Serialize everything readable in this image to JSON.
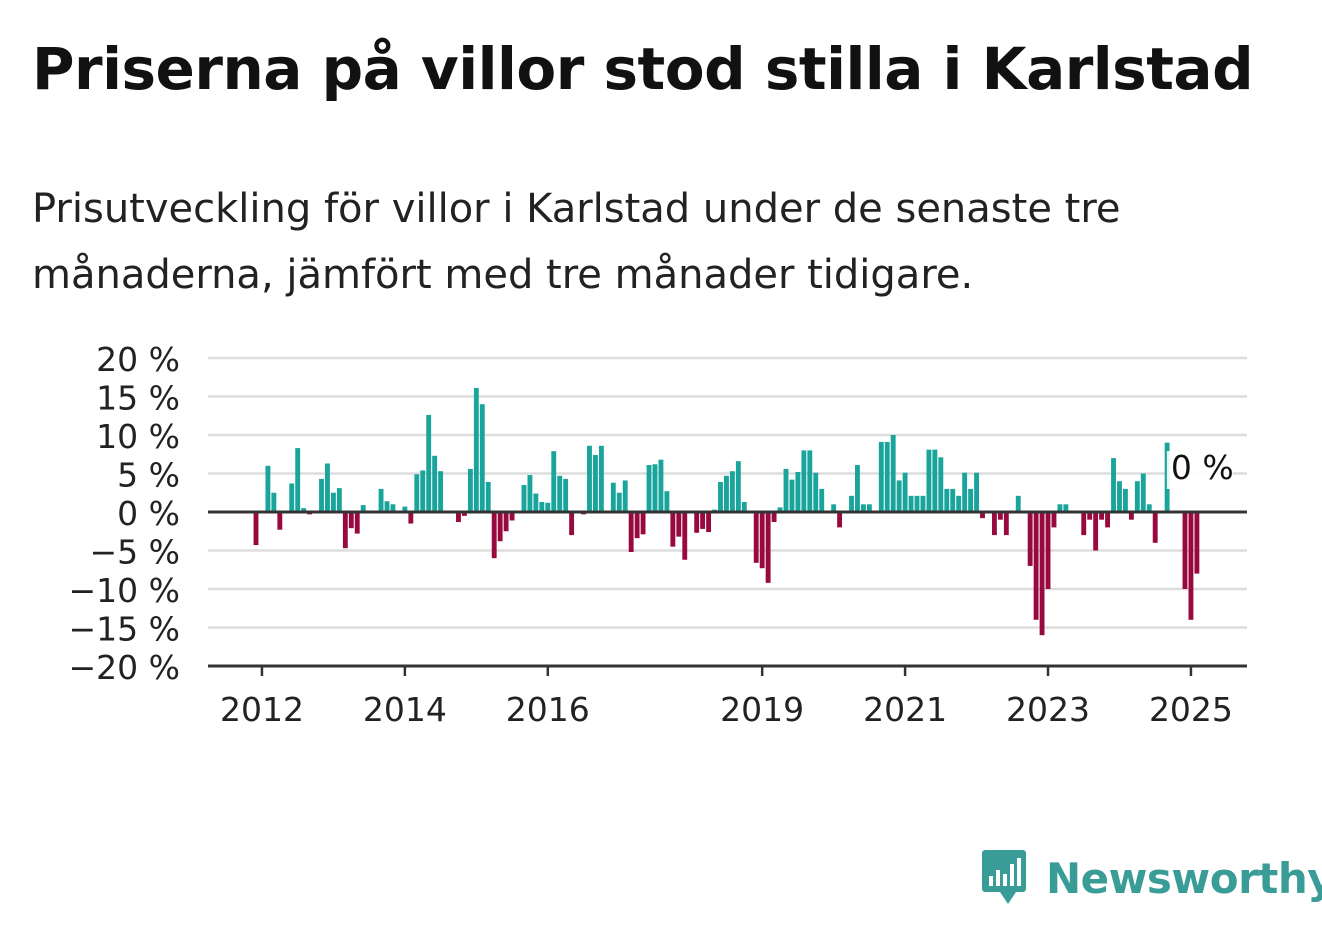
{
  "title": "Priserna på villor stod stilla i Karlstad",
  "subtitle": "Prisutveckling för villor i Karlstad under de senaste tre månaderna, jämfört med tre månader tidigare.",
  "brand": {
    "name": "Newsworthy",
    "color": "#3a9c97",
    "icon": "newsworthy-logo-icon"
  },
  "colors": {
    "positive": "#1aa59c",
    "negative": "#980a3f",
    "grid": "#dddddd",
    "axis": "#333333"
  },
  "chart_data": {
    "type": "bar",
    "x_unit": "month",
    "x_start": "2011-12",
    "ylim": [
      -20,
      20
    ],
    "yticks": [
      20,
      15,
      10,
      5,
      0,
      -5,
      -10,
      -15,
      -20
    ],
    "ytick_labels": [
      "20 %",
      "15 %",
      "10 %",
      "5 %",
      "0 %",
      "−5 %",
      "−10 %",
      "−15 %",
      "−20 %"
    ],
    "xtick_labels": [
      {
        "x": "2012-01",
        "label": "2012"
      },
      {
        "x": "2014-01",
        "label": "2014"
      },
      {
        "x": "2016-01",
        "label": "2016"
      },
      {
        "x": "2019-01",
        "label": "2019"
      },
      {
        "x": "2021-01",
        "label": "2021"
      },
      {
        "x": "2023-01",
        "label": "2023"
      },
      {
        "x": "2025-01",
        "label": "2025"
      }
    ],
    "last_value_label": "0 %",
    "grid": true,
    "values": [
      -4.3,
      0,
      6.0,
      2.5,
      -2.3,
      0,
      3.7,
      8.3,
      0.5,
      -0.3,
      0,
      4.3,
      6.3,
      2.5,
      3.1,
      -4.7,
      -2.1,
      -2.8,
      0.9,
      0,
      0,
      3.0,
      1.4,
      1.0,
      0,
      0.7,
      -1.5,
      4.9,
      5.4,
      12.6,
      7.3,
      5.3,
      0,
      0,
      -1.3,
      -0.5,
      5.6,
      16.1,
      14.0,
      3.9,
      -6.0,
      -3.8,
      -2.5,
      -1.1,
      0,
      3.5,
      4.8,
      2.4,
      1.3,
      1.2,
      7.9,
      4.7,
      4.3,
      -3.0,
      0,
      -0.3,
      8.6,
      7.4,
      8.6,
      0,
      3.8,
      2.5,
      4.1,
      -5.2,
      -3.4,
      -2.9,
      6.1,
      6.2,
      6.8,
      2.7,
      -4.5,
      -3.2,
      -6.2,
      0,
      -2.7,
      -2.2,
      -2.6,
      0.3,
      3.9,
      4.7,
      5.3,
      6.6,
      1.3,
      0,
      -6.6,
      -7.3,
      -9.2,
      -1.3,
      0.6,
      5.6,
      4.2,
      5.2,
      8.0,
      8.0,
      5.1,
      3.0,
      0,
      1.0,
      -2.0,
      0,
      2.1,
      6.1,
      1.0,
      1.0,
      0,
      9.1,
      9.1,
      10.0,
      4.1,
      5.1,
      2.1,
      2.1,
      2.1,
      8.1,
      8.1,
      7.1,
      3.0,
      3.0,
      2.1,
      5.1,
      3.0,
      5.1,
      -0.8,
      0,
      -3.0,
      -1.0,
      -3.0,
      0,
      2.1,
      0,
      -7.0,
      -14.0,
      -16.0,
      -10.0,
      -2.0,
      1.0,
      1.0,
      0,
      0,
      -3.0,
      -1.0,
      -5.0,
      -1.0,
      -2.0,
      7.0,
      4.0,
      3.0,
      -1.0,
      4.0,
      5.0,
      1.0,
      -4.0,
      0,
      9.0,
      0,
      0,
      -10.0,
      -14.0,
      -8.0,
      0
    ]
  }
}
